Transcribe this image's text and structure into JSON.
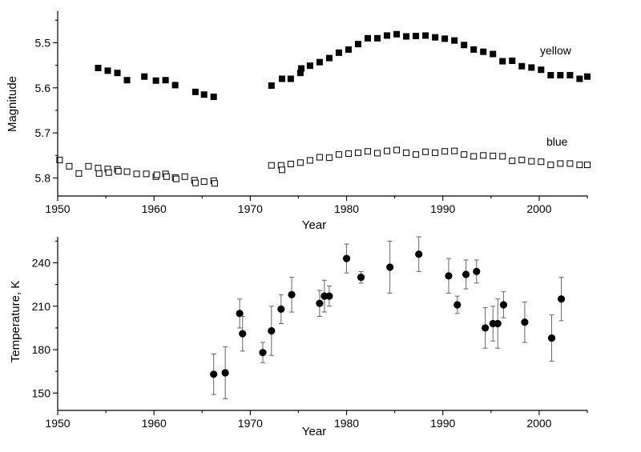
{
  "chart_data": [
    {
      "type": "scatter",
      "xlabel": "Year",
      "ylabel": "Magnitude",
      "xlim": [
        1950,
        2005
      ],
      "ylim": [
        5.43,
        5.84
      ],
      "y_inverted": true,
      "xticks": [
        1950,
        1960,
        1970,
        1980,
        1990,
        2000
      ],
      "xtick_labels": [
        "1950",
        "1960",
        "1970",
        "1980",
        "1990",
        "2000"
      ],
      "yticks": [
        5.5,
        5.6,
        5.7,
        5.8
      ],
      "ytick_labels": [
        "5.5",
        "5.6",
        "5.7",
        "5.8"
      ],
      "series": [
        {
          "name": "yellow",
          "marker": "filled-square",
          "color": "#000000",
          "x": [
            1954.2,
            1955.2,
            1956.2,
            1957.2,
            1959.0,
            1960.2,
            1961.2,
            1962.2,
            1964.3,
            1965.2,
            1966.2,
            1972.2,
            1973.3,
            1974.2,
            1975.2,
            1975.3,
            1976.2,
            1977.2,
            1978.2,
            1979.2,
            1980.2,
            1981.2,
            1982.2,
            1983.2,
            1984.2,
            1985.2,
            1986.2,
            1987.2,
            1988.2,
            1989.2,
            1990.2,
            1991.2,
            1992.2,
            1993.2,
            1994.2,
            1995.2,
            1996.2,
            1997.2,
            1998.2,
            1999.2,
            2000.2,
            2001.2,
            2002.2,
            2003.2,
            2004.2,
            2005.0
          ],
          "y": [
            5.556,
            5.562,
            5.567,
            5.583,
            5.575,
            5.584,
            5.583,
            5.594,
            5.609,
            5.615,
            5.62,
            5.595,
            5.58,
            5.58,
            5.567,
            5.557,
            5.551,
            5.543,
            5.534,
            5.522,
            5.515,
            5.503,
            5.49,
            5.49,
            5.484,
            5.481,
            5.486,
            5.485,
            5.484,
            5.488,
            5.491,
            5.495,
            5.505,
            5.515,
            5.52,
            5.525,
            5.541,
            5.54,
            5.552,
            5.555,
            5.56,
            5.572,
            5.572,
            5.572,
            5.58,
            5.575
          ]
        },
        {
          "name": "blue",
          "marker": "open-square",
          "color": "#000000",
          "x": [
            1950.2,
            1951.2,
            1952.2,
            1953.2,
            1954.2,
            1955.2,
            1956.2,
            1957.2,
            1958.2,
            1959.2,
            1960.2,
            1961.2,
            1962.2,
            1963.2,
            1964.2,
            1965.2,
            1966.2,
            1954.3,
            1955.3,
            1956.3,
            1960.3,
            1961.3,
            1962.3,
            1964.3,
            1966.3,
            1972.2,
            1973.2,
            1974.2,
            1975.2,
            1976.2,
            1977.2,
            1978.2,
            1979.2,
            1980.2,
            1981.2,
            1982.2,
            1983.2,
            1984.2,
            1985.2,
            1986.2,
            1987.2,
            1988.2,
            1989.2,
            1990.2,
            1991.2,
            1992.2,
            1993.2,
            1994.2,
            1995.2,
            1996.2,
            1997.2,
            1998.2,
            1999.2,
            2000.2,
            2001.2,
            2002.2,
            2003.2,
            2004.2,
            2005.0,
            1973.3
          ],
          "y": [
            5.76,
            5.774,
            5.79,
            5.774,
            5.778,
            5.78,
            5.781,
            5.786,
            5.791,
            5.791,
            5.797,
            5.791,
            5.799,
            5.797,
            5.805,
            5.808,
            5.806,
            5.79,
            5.788,
            5.785,
            5.793,
            5.797,
            5.802,
            5.811,
            5.812,
            5.772,
            5.772,
            5.769,
            5.766,
            5.761,
            5.754,
            5.755,
            5.748,
            5.746,
            5.744,
            5.741,
            5.745,
            5.74,
            5.738,
            5.744,
            5.748,
            5.742,
            5.744,
            5.741,
            5.74,
            5.748,
            5.752,
            5.75,
            5.751,
            5.752,
            5.762,
            5.76,
            5.763,
            5.764,
            5.771,
            5.768,
            5.768,
            5.771,
            5.771,
            5.782
          ]
        }
      ]
    },
    {
      "type": "scatter",
      "xlabel": "Year",
      "ylabel": "Temperature, K",
      "xlim": [
        1950,
        2005
      ],
      "ylim": [
        138,
        258
      ],
      "xticks": [
        1950,
        1960,
        1970,
        1980,
        1990,
        2000
      ],
      "xtick_labels": [
        "1950",
        "1960",
        "1970",
        "1980",
        "1990",
        "2000"
      ],
      "yticks": [
        150,
        180,
        210,
        240
      ],
      "ytick_labels": [
        "150",
        "180",
        "210",
        "240"
      ],
      "series": [
        {
          "marker": "filled-circle",
          "color": "#000000",
          "x": [
            1966.2,
            1967.4,
            1968.9,
            1969.2,
            1971.3,
            1972.2,
            1973.2,
            1974.3,
            1977.2,
            1977.7,
            1978.2,
            1980.0,
            1981.5,
            1984.5,
            1987.5,
            1990.6,
            1991.5,
            1992.4,
            1993.5,
            1994.4,
            1995.2,
            1995.7,
            1996.3,
            1998.5,
            2001.3,
            2002.3
          ],
          "y": [
            163,
            164,
            205,
            191,
            178,
            193,
            208,
            218,
            212,
            217,
            217,
            243,
            230,
            237,
            246,
            231,
            211,
            232,
            234,
            195,
            198,
            198,
            211,
            199,
            188,
            215
          ],
          "err": [
            14,
            18,
            10,
            12,
            7,
            17,
            10,
            12,
            9,
            11,
            7,
            10,
            4,
            18,
            12,
            12,
            6,
            10,
            8,
            14,
            12,
            17,
            9,
            14,
            16,
            15
          ]
        }
      ]
    }
  ]
}
